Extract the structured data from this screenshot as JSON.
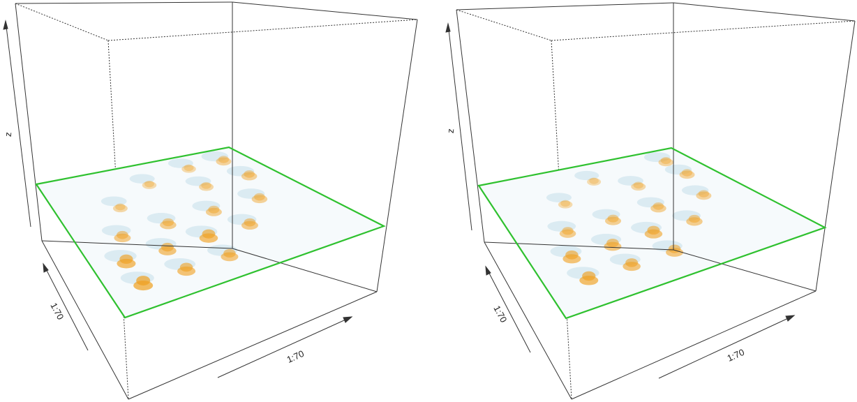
{
  "chart_data": [
    {
      "type": "surface3d",
      "panel": "left",
      "xlabel": "1:70",
      "ylabel": "1:70",
      "zlabel": "z",
      "xlim": [
        1,
        70
      ],
      "ylim": [
        1,
        70
      ],
      "grid": false,
      "plane_color": "#33cc33",
      "surface_colors": {
        "positive": "#f0a020",
        "negative": "#a8cfe0",
        "neutral": "#f4f8fa"
      },
      "peaks": [
        {
          "x": 10,
          "y": 12,
          "z": 1.0
        },
        {
          "x": 22,
          "y": 12,
          "z": 0.8
        },
        {
          "x": 34,
          "y": 12,
          "z": 0.7
        },
        {
          "x": 10,
          "y": 24,
          "z": 0.9
        },
        {
          "x": 22,
          "y": 24,
          "z": 0.75
        },
        {
          "x": 34,
          "y": 24,
          "z": 0.85
        },
        {
          "x": 46,
          "y": 24,
          "z": 0.6
        },
        {
          "x": 14,
          "y": 36,
          "z": 0.6
        },
        {
          "x": 28,
          "y": 36,
          "z": 0.55
        },
        {
          "x": 42,
          "y": 36,
          "z": 0.5
        },
        {
          "x": 56,
          "y": 36,
          "z": 0.45
        },
        {
          "x": 62,
          "y": 50,
          "z": 0.45
        },
        {
          "x": 62,
          "y": 62,
          "z": 0.4
        },
        {
          "x": 48,
          "y": 50,
          "z": 0.3
        },
        {
          "x": 20,
          "y": 50,
          "z": 0.3
        },
        {
          "x": 34,
          "y": 58,
          "z": 0.25
        },
        {
          "x": 50,
          "y": 62,
          "z": 0.25
        }
      ]
    },
    {
      "type": "surface3d",
      "panel": "right",
      "xlabel": "1:70",
      "ylabel": "1:70",
      "zlabel": "z",
      "xlim": [
        1,
        70
      ],
      "ylim": [
        1,
        70
      ],
      "grid": false,
      "plane_color": "#33cc33",
      "surface_colors": {
        "positive": "#f0a020",
        "negative": "#a8cfe0",
        "neutral": "#f4f8fa"
      },
      "peaks": [
        {
          "x": 12,
          "y": 14,
          "z": 0.9
        },
        {
          "x": 24,
          "y": 14,
          "z": 0.75
        },
        {
          "x": 36,
          "y": 14,
          "z": 0.7
        },
        {
          "x": 12,
          "y": 26,
          "z": 0.8
        },
        {
          "x": 24,
          "y": 26,
          "z": 0.7
        },
        {
          "x": 36,
          "y": 26,
          "z": 0.75
        },
        {
          "x": 48,
          "y": 26,
          "z": 0.55
        },
        {
          "x": 16,
          "y": 38,
          "z": 0.55
        },
        {
          "x": 30,
          "y": 38,
          "z": 0.5
        },
        {
          "x": 44,
          "y": 38,
          "z": 0.45
        },
        {
          "x": 58,
          "y": 38,
          "z": 0.4
        },
        {
          "x": 62,
          "y": 52,
          "z": 0.4
        },
        {
          "x": 62,
          "y": 62,
          "z": 0.35
        },
        {
          "x": 46,
          "y": 52,
          "z": 0.3
        },
        {
          "x": 22,
          "y": 52,
          "z": 0.25
        },
        {
          "x": 36,
          "y": 60,
          "z": 0.2
        }
      ]
    }
  ]
}
